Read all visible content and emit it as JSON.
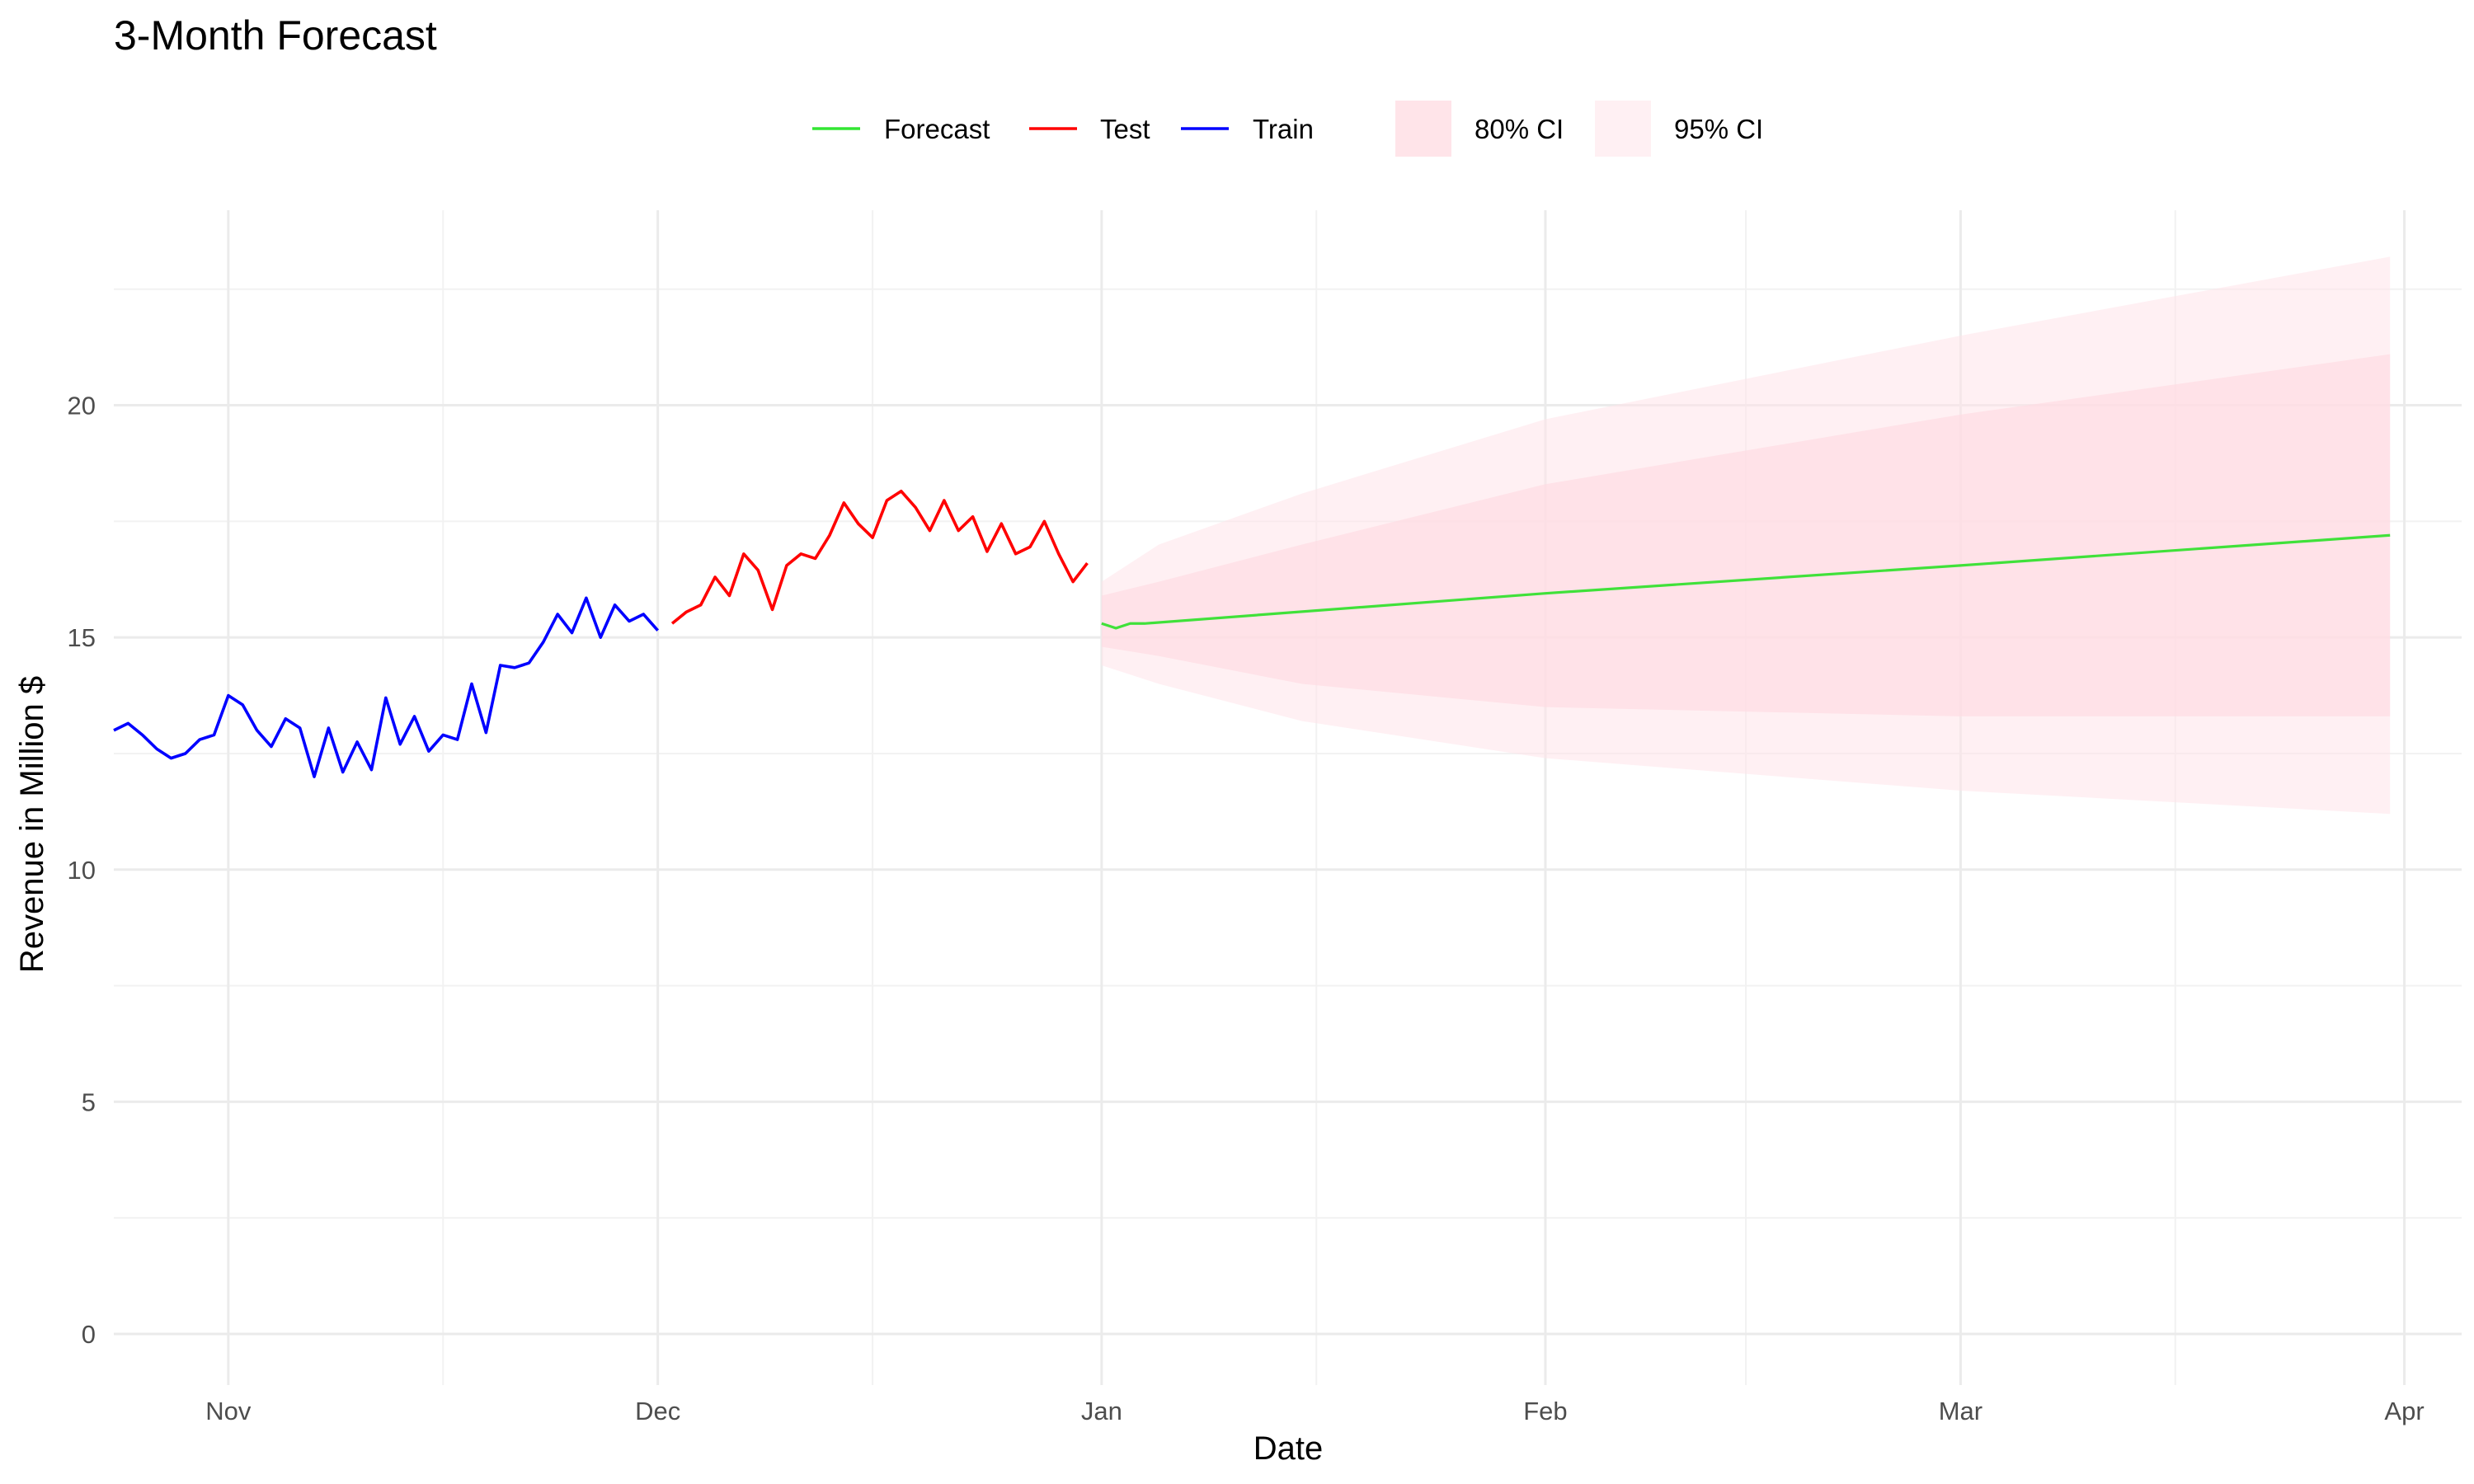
{
  "chart_data": {
    "type": "line",
    "title": "3-Month Forecast",
    "xlabel": "Date",
    "ylabel": "Revenue in Million $",
    "ylim": [
      -1.1,
      24.2
    ],
    "xlim": [
      "2023-10-24",
      "2024-04-05"
    ],
    "grid": true,
    "legend_position": "top",
    "x_ticks": [
      {
        "date": "2023-11-01",
        "label": "Nov"
      },
      {
        "date": "2023-12-01",
        "label": "Dec"
      },
      {
        "date": "2024-01-01",
        "label": "Jan"
      },
      {
        "date": "2024-02-01",
        "label": "Feb"
      },
      {
        "date": "2024-03-01",
        "label": "Mar"
      },
      {
        "date": "2024-04-01",
        "label": "Apr"
      }
    ],
    "x_minor_ticks": [
      "2023-11-16",
      "2023-12-16",
      "2024-01-16",
      "2024-02-15",
      "2024-03-16"
    ],
    "y_ticks": [
      0,
      5,
      10,
      15,
      20
    ],
    "y_minor_ticks": [
      2.5,
      7.5,
      12.5,
      17.5,
      22.5
    ],
    "series": [
      {
        "name": "Train",
        "color": "#0000ff",
        "start": "2023-10-24",
        "values": [
          13.0,
          13.15,
          12.9,
          12.6,
          12.4,
          12.5,
          12.8,
          12.9,
          13.75,
          13.55,
          13.0,
          12.65,
          13.25,
          13.05,
          12.0,
          13.05,
          12.1,
          12.75,
          12.15,
          13.7,
          12.7,
          13.3,
          12.55,
          12.9,
          12.8,
          14.0,
          12.95,
          14.4,
          14.35,
          14.45,
          14.9,
          15.5,
          15.1,
          15.85,
          15.0,
          15.7,
          15.35,
          15.5,
          15.15
        ]
      },
      {
        "name": "Test",
        "color": "#ff0000",
        "start": "2023-12-02",
        "values": [
          15.3,
          15.55,
          15.7,
          16.3,
          15.9,
          16.8,
          16.45,
          15.6,
          16.55,
          16.8,
          16.7,
          17.2,
          17.9,
          17.45,
          17.15,
          17.95,
          18.15,
          17.8,
          17.3,
          17.95,
          17.3,
          17.6,
          16.85,
          17.45,
          16.8,
          16.95,
          17.5,
          16.8,
          16.2,
          16.6
        ]
      },
      {
        "name": "Forecast",
        "color": "#00e000",
        "dates": [
          "2024-01-01",
          "2024-01-02",
          "2024-01-03",
          "2024-01-04",
          "2024-02-01",
          "2024-03-01",
          "2024-03-31"
        ],
        "values": [
          15.3,
          15.2,
          15.3,
          15.3,
          15.95,
          16.55,
          17.2
        ]
      }
    ],
    "bands": [
      {
        "name": "95% CI",
        "color": "#ffe4e9",
        "opacity": 0.55,
        "dates": [
          "2024-01-01",
          "2024-01-05",
          "2024-01-15",
          "2024-02-01",
          "2024-03-01",
          "2024-03-31"
        ],
        "upper": [
          16.2,
          17.0,
          18.1,
          19.7,
          21.5,
          23.2
        ],
        "lower": [
          14.4,
          14.0,
          13.2,
          12.4,
          11.7,
          11.2
        ]
      },
      {
        "name": "80% CI",
        "color": "#ffdbe2",
        "opacity": 0.7,
        "dates": [
          "2024-01-01",
          "2024-01-05",
          "2024-01-15",
          "2024-02-01",
          "2024-03-01",
          "2024-03-31"
        ],
        "upper": [
          15.9,
          16.2,
          17.0,
          18.3,
          19.8,
          21.1
        ],
        "lower": [
          14.8,
          14.6,
          14.0,
          13.5,
          13.3,
          13.3
        ]
      }
    ],
    "legend_lines": [
      {
        "label": "Forecast",
        "color": "#00e000"
      },
      {
        "label": "Test",
        "color": "#ff0000"
      },
      {
        "label": "Train",
        "color": "#0000ff"
      }
    ],
    "legend_fills": [
      {
        "label": "80% CI",
        "color": "#ffe4e9"
      },
      {
        "label": "95% CI",
        "color": "#fff0f3"
      }
    ]
  }
}
